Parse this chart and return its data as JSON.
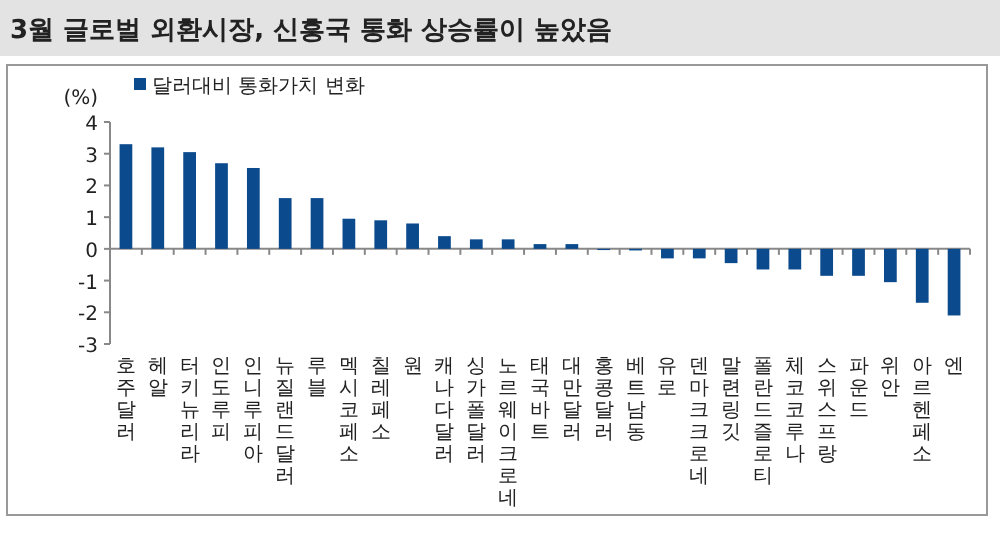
{
  "chart_data": {
    "type": "bar",
    "title": "3월 글로벌 외환시장, 신흥국 통화 상승률이 높았음",
    "ylabel": "(%)",
    "categories": [
      "호주달러",
      "헤알",
      "터키뉴리라",
      "인도루피",
      "인니루피아",
      "뉴질랜드달러",
      "루블",
      "멕시코페소",
      "칠레페소",
      "원",
      "캐나다달러",
      "싱가폴달러",
      "노르웨이크로네",
      "태국바트",
      "대만달러",
      "홍콩달러",
      "베트남동",
      "유로",
      "덴마크크로네",
      "말련링깃",
      "폴란드즐로티",
      "체코코루나",
      "스위스프랑",
      "파운드",
      "위안",
      "아르헨페소",
      "엔"
    ],
    "series": [
      {
        "name": "달러대비 통화가치 변화",
        "color": "#0b4a8c",
        "values": [
          3.3,
          3.2,
          3.05,
          2.7,
          2.55,
          1.6,
          1.6,
          0.95,
          0.9,
          0.8,
          0.4,
          0.3,
          0.3,
          0.15,
          0.15,
          0,
          -0.05,
          -0.3,
          -0.3,
          -0.45,
          -0.65,
          -0.65,
          -0.85,
          -0.85,
          -1.05,
          -1.7,
          -2.1
        ]
      }
    ],
    "ylim": [
      -3,
      4
    ],
    "yticks": [
      -3,
      -2,
      -1,
      0,
      1,
      2,
      3,
      4
    ],
    "legend": "top left"
  }
}
